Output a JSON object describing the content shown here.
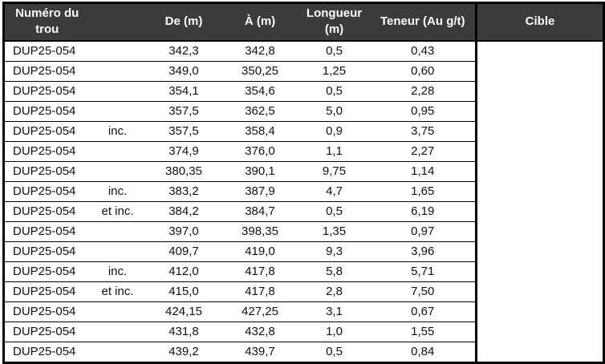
{
  "table": {
    "headers": {
      "numero_trou": "Numéro du trou",
      "qualifier": "",
      "de": "De (m)",
      "a": "À (m)",
      "longueur": "Longueur (m)",
      "teneur": "Teneur (Au g/t)",
      "cible": "Cible"
    },
    "cible_value": "",
    "rows": [
      {
        "trou": "DUP25-054",
        "qualifier": "",
        "de": "342,3",
        "a": "342,8",
        "longueur": "0,5",
        "teneur": "0,43"
      },
      {
        "trou": "DUP25-054",
        "qualifier": "",
        "de": "349,0",
        "a": "350,25",
        "longueur": "1,25",
        "teneur": "0,60"
      },
      {
        "trou": "DUP25-054",
        "qualifier": "",
        "de": "354,1",
        "a": "354,6",
        "longueur": "0,5",
        "teneur": "2,28"
      },
      {
        "trou": "DUP25-054",
        "qualifier": "",
        "de": "357,5",
        "a": "362,5",
        "longueur": "5,0",
        "teneur": "0,95"
      },
      {
        "trou": "DUP25-054",
        "qualifier": "inc.",
        "de": "357,5",
        "a": "358,4",
        "longueur": "0,9",
        "teneur": "3,75"
      },
      {
        "trou": "DUP25-054",
        "qualifier": "",
        "de": "374,9",
        "a": "376,0",
        "longueur": "1,1",
        "teneur": "2,27"
      },
      {
        "trou": "DUP25-054",
        "qualifier": "",
        "de": "380,35",
        "a": "390,1",
        "longueur": "9,75",
        "teneur": "1,14"
      },
      {
        "trou": "DUP25-054",
        "qualifier": "inc.",
        "de": "383,2",
        "a": "387,9",
        "longueur": "4,7",
        "teneur": "1,65"
      },
      {
        "trou": "DUP25-054",
        "qualifier": "et inc.",
        "de": "384,2",
        "a": "384,7",
        "longueur": "0,5",
        "teneur": "6,19"
      },
      {
        "trou": "DUP25-054",
        "qualifier": "",
        "de": "397,0",
        "a": "398,35",
        "longueur": "1,35",
        "teneur": "0,97"
      },
      {
        "trou": "DUP25-054",
        "qualifier": "",
        "de": "409,7",
        "a": "419,0",
        "longueur": "9,3",
        "teneur": "3,96"
      },
      {
        "trou": "DUP25-054",
        "qualifier": "inc.",
        "de": "412,0",
        "a": "417,8",
        "longueur": "5,8",
        "teneur": "5,71"
      },
      {
        "trou": "DUP25-054",
        "qualifier": "et inc.",
        "de": "415,0",
        "a": "417,8",
        "longueur": "2,8",
        "teneur": "7,50"
      },
      {
        "trou": "DUP25-054",
        "qualifier": "",
        "de": "424,15",
        "a": "427,25",
        "longueur": "3,1",
        "teneur": "0,67"
      },
      {
        "trou": "DUP25-054",
        "qualifier": "",
        "de": "431,8",
        "a": "432,8",
        "longueur": "1,0",
        "teneur": "1,55"
      },
      {
        "trou": "DUP25-054",
        "qualifier": "",
        "de": "439,2",
        "a": "439,7",
        "longueur": "0,5",
        "teneur": "0,84"
      }
    ]
  },
  "colors": {
    "header_bg": "#3b3b3b",
    "header_text": "#ffffff",
    "border": "#000000",
    "body_bg": "#ffffff",
    "body_text": "#111111"
  }
}
